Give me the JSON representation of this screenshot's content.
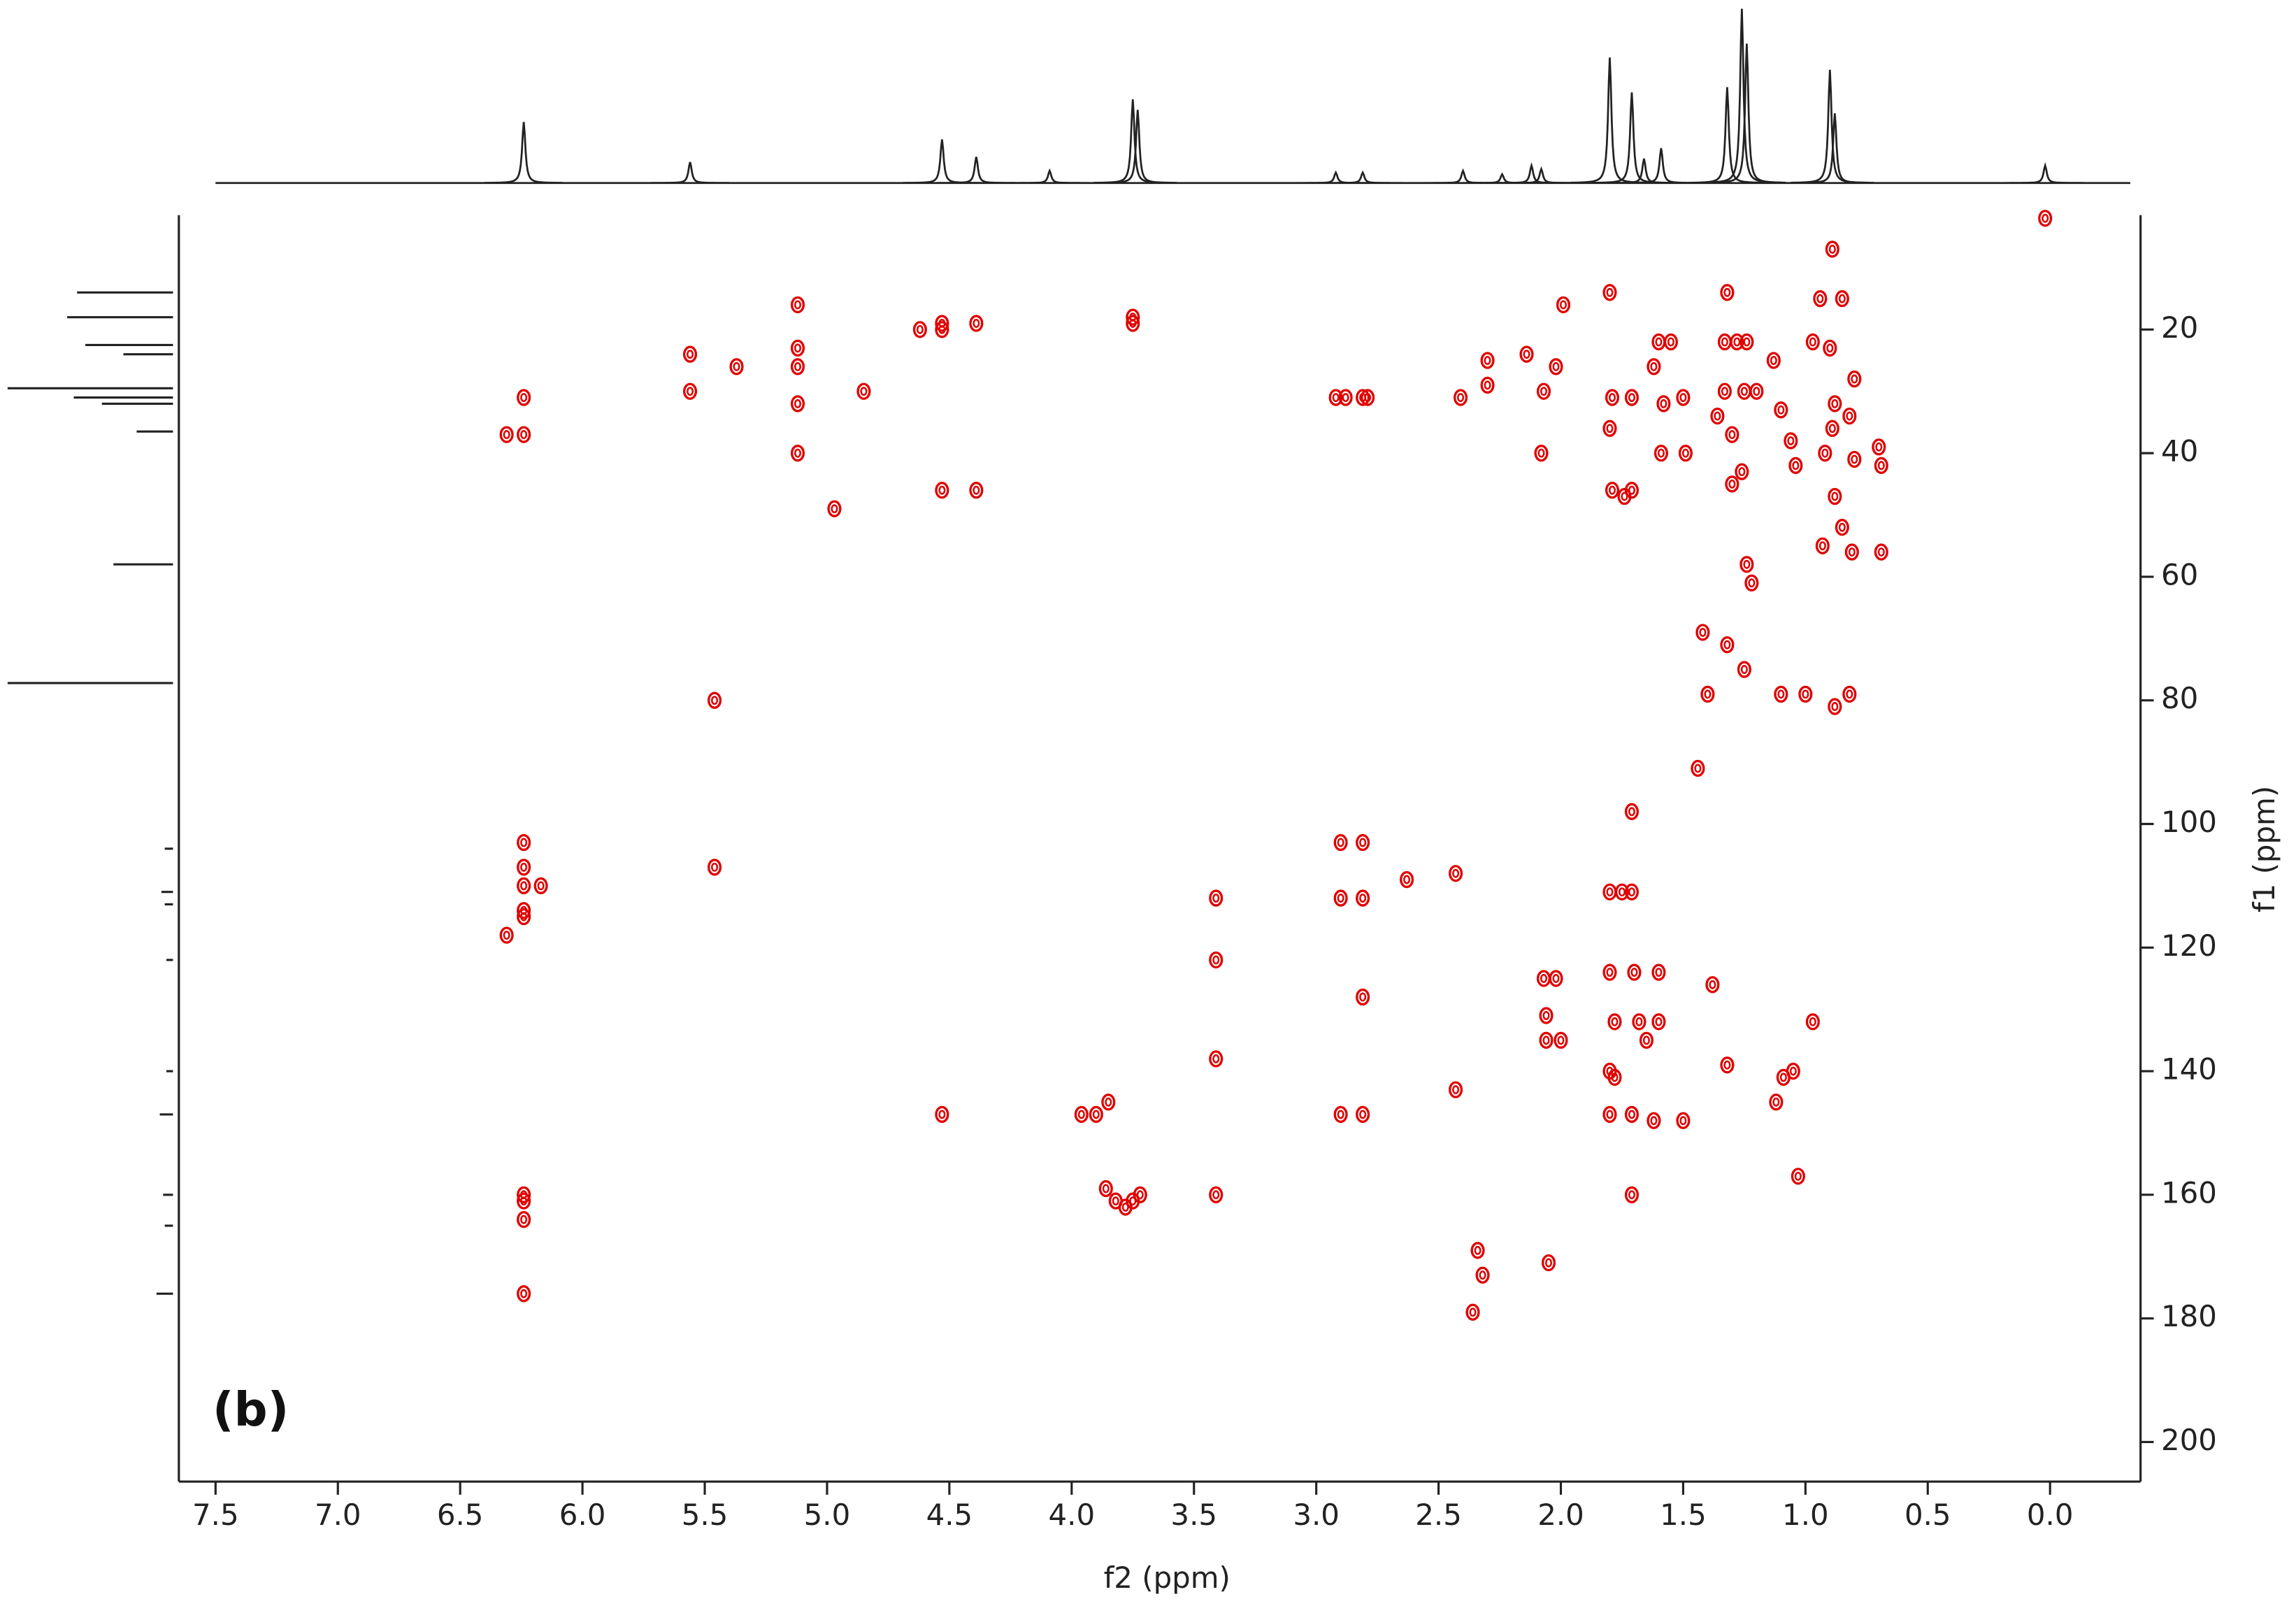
{
  "chart_data": {
    "type": "scatter",
    "annotation": "(b)",
    "x_label": "f2 (ppm)",
    "y_label": "f1 (ppm)",
    "color": "#e00000",
    "xlim": [
      7.65,
      -0.37
    ],
    "ylim": [
      1.5,
      206.4
    ],
    "xticks": [
      7.5,
      {
        "value": 7,
        "label": "7.0"
      },
      6.5,
      {
        "value": 6,
        "label": "6.0"
      },
      5.5,
      {
        "value": 5,
        "label": "5.0"
      },
      4.5,
      {
        "value": 4,
        "label": "4.0"
      },
      3.5,
      {
        "value": 3,
        "label": "3.0"
      },
      2.5,
      {
        "value": 2,
        "label": "2.0"
      },
      1.5,
      {
        "value": 1,
        "label": "1.0"
      },
      0.5,
      {
        "value": 0,
        "label": "0.0"
      }
    ],
    "yticks": [
      20,
      40,
      60,
      80,
      100,
      120,
      140,
      160,
      180,
      200
    ],
    "x": [
      6.24,
      6.24,
      6.31,
      6.24,
      6.24,
      6.24,
      6.17,
      6.24,
      6.24,
      6.31,
      6.24,
      6.24,
      6.24,
      6.24,
      5.56,
      5.56,
      5.46,
      5.46,
      5.37,
      5.12,
      5.12,
      5.12,
      5.12,
      5.12,
      4.97,
      4.85,
      4.53,
      4.53,
      4.39,
      4.53,
      4.39,
      4.62,
      4.53,
      3.75,
      3.75,
      3.96,
      3.9,
      3.85,
      3.86,
      3.82,
      3.78,
      3.75,
      3.72,
      3.41,
      3.41,
      3.41,
      3.41,
      2.92,
      2.88,
      2.81,
      2.79,
      2.9,
      2.81,
      2.9,
      2.81,
      2.81,
      2.9,
      2.81,
      2.63,
      2.43,
      2.43,
      2.41,
      2.3,
      2.3,
      2.34,
      2.32,
      2.36,
      2.14,
      2.07,
      2.02,
      2.06,
      2.06,
      2.0,
      2.05,
      2.02,
      2.07,
      2.08,
      1.99,
      1.8,
      1.79,
      1.8,
      1.79,
      1.74,
      1.71,
      1.71,
      1.71,
      1.71,
      1.75,
      1.8,
      1.8,
      1.7,
      1.6,
      1.78,
      1.68,
      1.6,
      1.65,
      1.8,
      1.78,
      1.8,
      1.71,
      1.62,
      1.71,
      1.5,
      1.6,
      1.55,
      1.62,
      1.58,
      1.59,
      1.5,
      1.49,
      1.42,
      1.4,
      1.38,
      1.44,
      1.32,
      1.33,
      1.28,
      1.24,
      1.33,
      1.25,
      1.2,
      1.36,
      1.3,
      1.26,
      1.3,
      1.24,
      1.22,
      1.32,
      1.25,
      1.32,
      1.12,
      1.09,
      1.05,
      1.03,
      0.97,
      1.1,
      1.0,
      0.88,
      0.82,
      1.13,
      1.1,
      1.06,
      1.04,
      0.97,
      0.9,
      0.88,
      0.89,
      0.92,
      0.88,
      0.85,
      0.8,
      0.82,
      0.8,
      0.7,
      0.69,
      0.69,
      0.81,
      0.93,
      0.89,
      0.02,
      0.85,
      0.94
    ],
    "values": [
      31,
      37,
      37,
      103,
      107,
      110,
      110,
      114,
      115,
      118,
      160,
      161,
      164,
      176,
      24,
      30,
      80,
      107,
      26,
      16,
      23,
      26,
      32,
      40,
      49,
      30,
      19,
      20,
      19,
      46,
      46,
      20,
      147,
      18,
      19,
      147,
      147,
      145,
      159,
      161,
      162,
      161,
      160,
      112,
      122,
      138,
      160,
      31,
      31,
      31,
      31,
      103,
      103,
      112,
      112,
      128,
      147,
      147,
      109,
      108,
      143,
      31,
      25,
      29,
      169,
      173,
      179,
      24,
      125,
      125,
      131,
      135,
      135,
      171,
      26,
      30,
      40,
      16,
      14,
      31,
      36,
      46,
      47,
      46,
      31,
      98,
      111,
      111,
      111,
      124,
      124,
      124,
      132,
      132,
      132,
      135,
      140,
      141,
      147,
      147,
      148,
      160,
      148,
      22,
      22,
      26,
      32,
      40,
      31,
      40,
      69,
      79,
      126,
      91,
      14,
      22,
      22,
      22,
      30,
      30,
      30,
      34,
      37,
      43,
      45,
      58,
      61,
      71,
      75,
      139,
      145,
      141,
      140,
      157,
      132,
      79,
      79,
      81,
      79,
      25,
      33,
      38,
      42,
      22,
      23,
      32,
      36,
      40,
      47,
      52,
      28,
      34,
      41,
      39,
      42,
      56,
      56,
      55,
      7,
      2,
      15,
      15
    ],
    "projection_f2": {
      "x": [
        6.24,
        5.56,
        4.53,
        4.39,
        4.09,
        3.75,
        3.73,
        2.92,
        2.81,
        2.4,
        2.24,
        2.12,
        2.08,
        1.8,
        1.71,
        1.66,
        1.59,
        1.32,
        1.26,
        1.24,
        0.9,
        0.88,
        0.02
      ],
      "values": [
        35,
        12,
        25,
        15,
        7,
        48,
        42,
        6,
        6,
        7,
        5,
        10,
        8,
        72,
        52,
        14,
        20,
        55,
        100,
        80,
        65,
        40,
        10
      ]
    },
    "projection_f1": {
      "x": [
        14,
        18,
        22.5,
        24,
        29.5,
        31,
        32,
        36.5,
        58,
        77.2,
        104,
        111,
        113,
        122,
        140,
        147,
        160,
        165,
        176
      ],
      "values": [
        58,
        64,
        53,
        30,
        100,
        60,
        43,
        22,
        36,
        100,
        5,
        7,
        5,
        4,
        4,
        8,
        6,
        5,
        10
      ]
    }
  }
}
